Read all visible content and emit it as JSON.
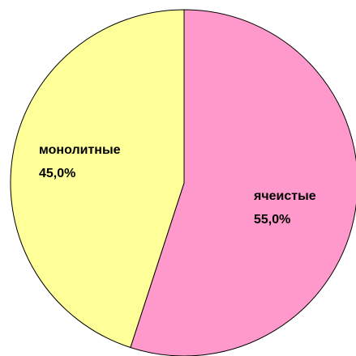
{
  "chart_data": {
    "type": "pie",
    "categories": [
      "ячеистые",
      "монолитные"
    ],
    "values": [
      55.0,
      45.0
    ],
    "value_labels": [
      "55,0%",
      "45,0%"
    ],
    "colors": [
      "#ff99cc",
      "#ffff99"
    ]
  }
}
